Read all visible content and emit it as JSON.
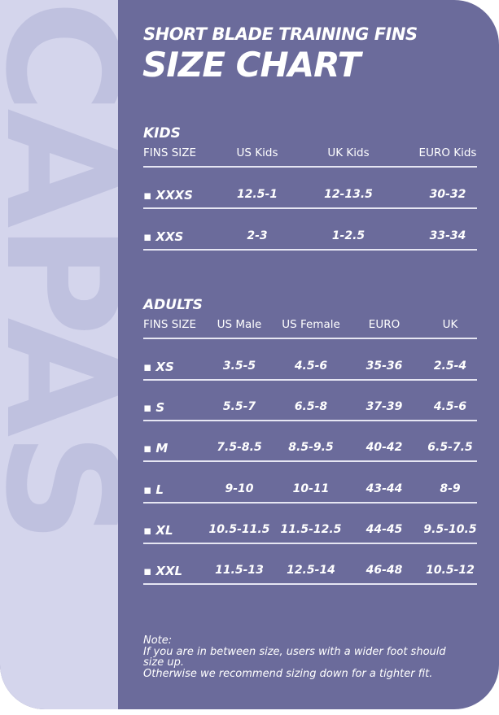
{
  "brand_watermark": "CAPAS",
  "colors": {
    "panel": "#6b6b9b",
    "strip": "#d4d5ec",
    "watermark": "#bfc1df",
    "text": "#ffffff"
  },
  "title": {
    "line1": "SHORT BLADE TRAINING FINS",
    "line2": "SIZE CHART"
  },
  "kids": {
    "heading": "KIDS",
    "columns": [
      "FINS SIZE",
      "US Kids",
      "UK Kids",
      "EURO Kids"
    ],
    "rows": [
      [
        "▪ XXXS",
        "12.5-1",
        "12-13.5",
        "30-32"
      ],
      [
        "▪ XXS",
        "2-3",
        "1-2.5",
        "33-34"
      ]
    ]
  },
  "adults": {
    "heading": "ADULTS",
    "columns": [
      "FINS SIZE",
      "US Male",
      "US Female",
      "EURO",
      "UK"
    ],
    "rows": [
      [
        "▪ XS",
        "3.5-5",
        "4.5-6",
        "35-36",
        "2.5-4"
      ],
      [
        "▪ S",
        "5.5-7",
        "6.5-8",
        "37-39",
        "4.5-6"
      ],
      [
        "▪ M",
        "7.5-8.5",
        "8.5-9.5",
        "40-42",
        "6.5-7.5"
      ],
      [
        "▪ L",
        "9-10",
        "10-11",
        "43-44",
        "8-9"
      ],
      [
        "▪ XL",
        "10.5-11.5",
        "11.5-12.5",
        "44-45",
        "9.5-10.5"
      ],
      [
        "▪ XXL",
        "11.5-13",
        "12.5-14",
        "46-48",
        "10.5-12"
      ]
    ]
  },
  "note": {
    "label": "Note:",
    "line1": "If you are in between size, users with a wider foot should size up.",
    "line2": "Otherwise we recommend sizing down for a tighter fit."
  }
}
